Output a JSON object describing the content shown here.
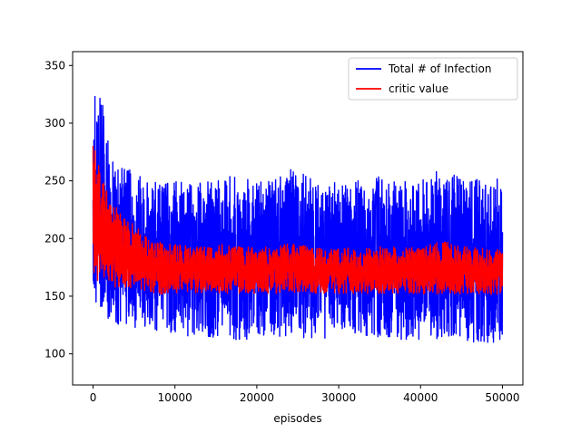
{
  "chart_data": {
    "type": "line",
    "title": "",
    "xlabel": "episodes",
    "ylabel": "",
    "xlim": [
      -2500,
      52500
    ],
    "ylim": [
      73,
      362
    ],
    "x_ticks": [
      0,
      10000,
      20000,
      30000,
      40000,
      50000
    ],
    "x_tick_labels": [
      "0",
      "10000",
      "20000",
      "30000",
      "40000",
      "50000"
    ],
    "y_ticks": [
      100,
      150,
      200,
      250,
      300,
      350
    ],
    "y_tick_labels": [
      "100",
      "150",
      "200",
      "250",
      "300",
      "350"
    ],
    "grid": false,
    "legend_position": "top-right",
    "x": [
      0,
      500,
      1000,
      1500,
      2000,
      3000,
      4000,
      5000,
      6000,
      7000,
      8000,
      9000,
      10000,
      12000,
      14000,
      16000,
      18000,
      20000,
      22000,
      24000,
      26000,
      28000,
      30000,
      32000,
      34000,
      36000,
      38000,
      40000,
      42000,
      44000,
      46000,
      48000,
      50000
    ],
    "series": [
      {
        "name": "Total # of Infection",
        "color": "#0000ff",
        "mean": [
          205,
          215,
          210,
          205,
          200,
          197,
          195,
          192,
          190,
          188,
          186,
          185,
          184,
          183,
          184,
          185,
          184,
          183,
          185,
          185,
          184,
          183,
          184,
          183,
          184,
          184,
          184,
          183,
          186,
          185,
          183,
          183,
          183
        ],
        "upper": [
          330,
          348,
          335,
          300,
          280,
          265,
          262,
          258,
          255,
          252,
          250,
          248,
          250,
          248,
          250,
          255,
          252,
          250,
          252,
          260,
          255,
          252,
          250,
          250,
          255,
          252,
          250,
          250,
          260,
          255,
          252,
          255,
          250
        ],
        "lower": [
          150,
          135,
          130,
          130,
          128,
          125,
          125,
          123,
          122,
          120,
          120,
          118,
          118,
          115,
          115,
          112,
          110,
          112,
          112,
          115,
          112,
          112,
          112,
          110,
          115,
          112,
          110,
          112,
          112,
          112,
          110,
          108,
          112
        ]
      },
      {
        "name": "critic value",
        "color": "#ff0000",
        "mean": [
          205,
          215,
          205,
          195,
          190,
          187,
          184,
          182,
          180,
          178,
          176,
          175,
          174,
          173,
          173,
          174,
          173,
          173,
          174,
          174,
          173,
          172,
          173,
          172,
          173,
          173,
          172,
          172,
          175,
          173,
          172,
          172,
          172
        ],
        "upper": [
          290,
          270,
          255,
          245,
          235,
          225,
          218,
          212,
          205,
          200,
          198,
          196,
          195,
          193,
          193,
          195,
          193,
          192,
          194,
          196,
          194,
          192,
          193,
          191,
          193,
          193,
          192,
          192,
          200,
          195,
          192,
          192,
          190
        ],
        "lower": [
          170,
          160,
          162,
          160,
          158,
          158,
          156,
          155,
          155,
          154,
          150,
          152,
          153,
          152,
          153,
          152,
          152,
          152,
          152,
          153,
          152,
          152,
          152,
          152,
          152,
          152,
          152,
          152,
          152,
          152,
          152,
          152,
          150
        ]
      }
    ]
  }
}
